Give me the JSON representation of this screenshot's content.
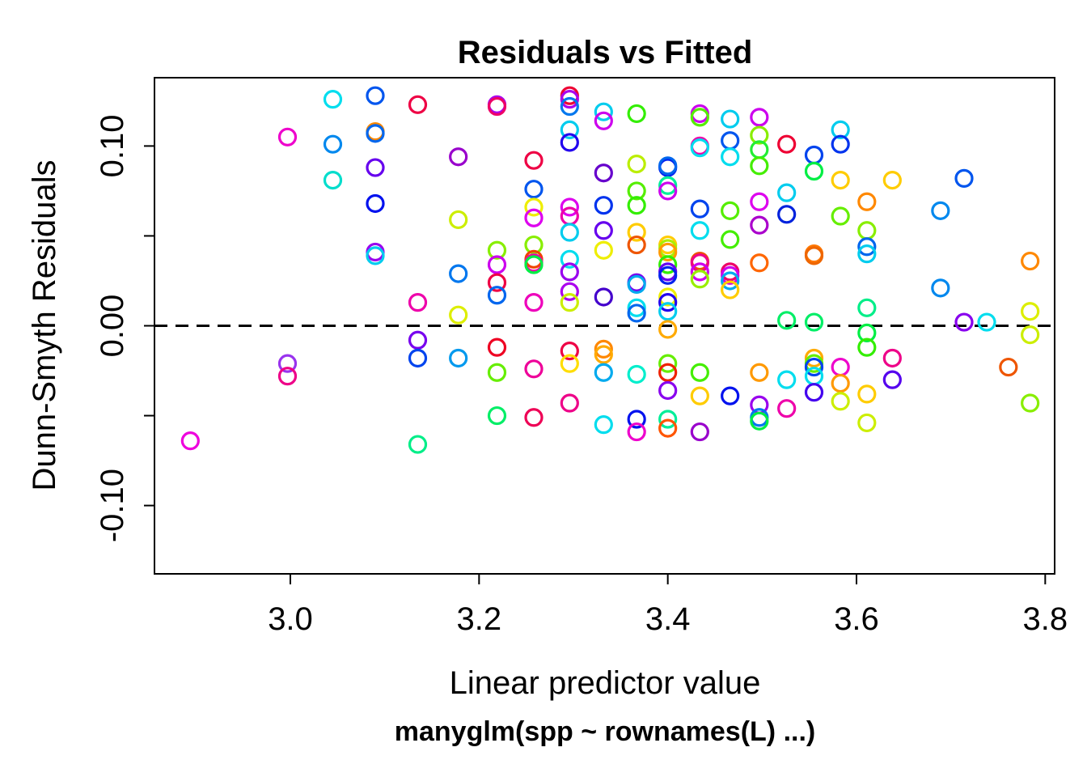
{
  "chart_data": {
    "type": "scatter",
    "title": "Residuals vs Fitted",
    "xlabel": "Linear predictor value",
    "subtitle": "manyglm(spp ~ rownames(L) ...)",
    "ylabel": "Dunn-Smyth Residuals",
    "xlim": [
      2.856,
      3.81
    ],
    "ylim": [
      -0.138,
      0.138
    ],
    "x_ticks": [
      3.0,
      3.2,
      3.4,
      3.6,
      3.8
    ],
    "x_tick_labels": [
      "3.0",
      "3.2",
      "3.4",
      "3.6",
      "3.8"
    ],
    "y_ticks": [
      -0.1,
      -0.05,
      0.0,
      0.05,
      0.1
    ],
    "y_tick_labels": [
      "-0.10",
      "",
      "0.00",
      "",
      "0.10"
    ],
    "reference_line": {
      "y": 0.0,
      "style": "dashed"
    },
    "grid": false,
    "marker": "open-circle",
    "points": [
      {
        "x": 2.894,
        "y": -0.064,
        "color": "#ee00dd"
      },
      {
        "x": 2.997,
        "y": 0.105,
        "color": "#ee00cc"
      },
      {
        "x": 2.997,
        "y": -0.021,
        "color": "#9933ee"
      },
      {
        "x": 2.997,
        "y": -0.028,
        "color": "#ee0088"
      },
      {
        "x": 3.045,
        "y": 0.126,
        "color": "#00ddee"
      },
      {
        "x": 3.045,
        "y": 0.101,
        "color": "#0088ee"
      },
      {
        "x": 3.045,
        "y": 0.081,
        "color": "#00ddcc"
      },
      {
        "x": 3.09,
        "y": 0.128,
        "color": "#0055ee"
      },
      {
        "x": 3.09,
        "y": 0.108,
        "color": "#ff8800"
      },
      {
        "x": 3.09,
        "y": 0.107,
        "color": "#0066ee"
      },
      {
        "x": 3.09,
        "y": 0.088,
        "color": "#6600ee"
      },
      {
        "x": 3.09,
        "y": 0.068,
        "color": "#0011ee"
      },
      {
        "x": 3.09,
        "y": 0.041,
        "color": "#9900ee"
      },
      {
        "x": 3.09,
        "y": 0.039,
        "color": "#00ccee"
      },
      {
        "x": 3.135,
        "y": 0.123,
        "color": "#ee0044"
      },
      {
        "x": 3.135,
        "y": 0.013,
        "color": "#ee00aa"
      },
      {
        "x": 3.135,
        "y": -0.008,
        "color": "#7700ee"
      },
      {
        "x": 3.135,
        "y": -0.018,
        "color": "#0044ee"
      },
      {
        "x": 3.135,
        "y": -0.066,
        "color": "#00ee88"
      },
      {
        "x": 3.178,
        "y": 0.094,
        "color": "#9900cc"
      },
      {
        "x": 3.178,
        "y": 0.059,
        "color": "#ccee00"
      },
      {
        "x": 3.178,
        "y": 0.029,
        "color": "#0077ee"
      },
      {
        "x": 3.178,
        "y": 0.006,
        "color": "#ddee00"
      },
      {
        "x": 3.178,
        "y": -0.018,
        "color": "#0099ee"
      },
      {
        "x": 3.219,
        "y": 0.123,
        "color": "#aa00ee"
      },
      {
        "x": 3.219,
        "y": 0.122,
        "color": "#ee0066"
      },
      {
        "x": 3.219,
        "y": 0.042,
        "color": "#88ee00"
      },
      {
        "x": 3.219,
        "y": 0.034,
        "color": "#cc00ee"
      },
      {
        "x": 3.219,
        "y": 0.024,
        "color": "#ee0044"
      },
      {
        "x": 3.219,
        "y": 0.017,
        "color": "#0066ee"
      },
      {
        "x": 3.219,
        "y": -0.012,
        "color": "#ee0022"
      },
      {
        "x": 3.219,
        "y": -0.026,
        "color": "#66ee00"
      },
      {
        "x": 3.219,
        "y": -0.05,
        "color": "#00ee66"
      },
      {
        "x": 3.258,
        "y": 0.092,
        "color": "#ee0044"
      },
      {
        "x": 3.258,
        "y": 0.076,
        "color": "#0055ee"
      },
      {
        "x": 3.258,
        "y": 0.066,
        "color": "#eeee00"
      },
      {
        "x": 3.258,
        "y": 0.06,
        "color": "#dd00ee"
      },
      {
        "x": 3.258,
        "y": 0.045,
        "color": "#88ee00"
      },
      {
        "x": 3.258,
        "y": 0.037,
        "color": "#ee4400"
      },
      {
        "x": 3.258,
        "y": 0.035,
        "color": "#ee00aa"
      },
      {
        "x": 3.258,
        "y": 0.034,
        "color": "#00ee44"
      },
      {
        "x": 3.258,
        "y": 0.013,
        "color": "#ee00bb"
      },
      {
        "x": 3.258,
        "y": -0.024,
        "color": "#ee0099"
      },
      {
        "x": 3.258,
        "y": -0.051,
        "color": "#ee0055"
      },
      {
        "x": 3.296,
        "y": 0.128,
        "color": "#ee0033"
      },
      {
        "x": 3.296,
        "y": 0.126,
        "color": "#aa00ee"
      },
      {
        "x": 3.296,
        "y": 0.122,
        "color": "#0077ee"
      },
      {
        "x": 3.296,
        "y": 0.109,
        "color": "#00ccee"
      },
      {
        "x": 3.296,
        "y": 0.102,
        "color": "#2200ee"
      },
      {
        "x": 3.296,
        "y": 0.066,
        "color": "#dd00ee"
      },
      {
        "x": 3.296,
        "y": 0.061,
        "color": "#ee00aa"
      },
      {
        "x": 3.296,
        "y": 0.052,
        "color": "#00ccee"
      },
      {
        "x": 3.296,
        "y": 0.037,
        "color": "#00ddee"
      },
      {
        "x": 3.296,
        "y": 0.03,
        "color": "#9900ee"
      },
      {
        "x": 3.296,
        "y": 0.019,
        "color": "#aa00ee"
      },
      {
        "x": 3.296,
        "y": 0.013,
        "color": "#ccee00"
      },
      {
        "x": 3.296,
        "y": -0.014,
        "color": "#ee0044"
      },
      {
        "x": 3.296,
        "y": -0.021,
        "color": "#ffdd00"
      },
      {
        "x": 3.296,
        "y": -0.043,
        "color": "#ee0088"
      },
      {
        "x": 3.332,
        "y": 0.119,
        "color": "#00ccee"
      },
      {
        "x": 3.332,
        "y": 0.114,
        "color": "#cc00ee"
      },
      {
        "x": 3.332,
        "y": 0.085,
        "color": "#6600cc"
      },
      {
        "x": 3.332,
        "y": 0.067,
        "color": "#0033ee"
      },
      {
        "x": 3.332,
        "y": 0.053,
        "color": "#6600ee"
      },
      {
        "x": 3.332,
        "y": 0.042,
        "color": "#eeee00"
      },
      {
        "x": 3.332,
        "y": 0.016,
        "color": "#4400cc"
      },
      {
        "x": 3.332,
        "y": -0.013,
        "color": "#ff8800"
      },
      {
        "x": 3.332,
        "y": -0.016,
        "color": "#ffaa00"
      },
      {
        "x": 3.332,
        "y": -0.026,
        "color": "#00aaee"
      },
      {
        "x": 3.332,
        "y": -0.055,
        "color": "#00ddee"
      },
      {
        "x": 3.367,
        "y": 0.118,
        "color": "#33ee00"
      },
      {
        "x": 3.367,
        "y": 0.09,
        "color": "#bbee00"
      },
      {
        "x": 3.367,
        "y": 0.075,
        "color": "#55ee00"
      },
      {
        "x": 3.367,
        "y": 0.067,
        "color": "#33ee00"
      },
      {
        "x": 3.367,
        "y": 0.052,
        "color": "#ffcc00"
      },
      {
        "x": 3.367,
        "y": 0.045,
        "color": "#ee5500"
      },
      {
        "x": 3.367,
        "y": 0.024,
        "color": "#7700ee"
      },
      {
        "x": 3.367,
        "y": 0.023,
        "color": "#00aaee"
      },
      {
        "x": 3.367,
        "y": 0.01,
        "color": "#00ddee"
      },
      {
        "x": 3.367,
        "y": 0.007,
        "color": "#0066ee"
      },
      {
        "x": 3.367,
        "y": -0.027,
        "color": "#00eecc"
      },
      {
        "x": 3.367,
        "y": -0.052,
        "color": "#0011ee"
      },
      {
        "x": 3.367,
        "y": -0.059,
        "color": "#ee00cc"
      },
      {
        "x": 3.4,
        "y": 0.088,
        "color": "#0022ee"
      },
      {
        "x": 3.4,
        "y": 0.089,
        "color": "#0066ee"
      },
      {
        "x": 3.4,
        "y": 0.078,
        "color": "#00ee99"
      },
      {
        "x": 3.4,
        "y": 0.075,
        "color": "#cc00ee"
      },
      {
        "x": 3.4,
        "y": 0.045,
        "color": "#ffcc00"
      },
      {
        "x": 3.4,
        "y": 0.043,
        "color": "#aaee00"
      },
      {
        "x": 3.4,
        "y": 0.041,
        "color": "#ff9900"
      },
      {
        "x": 3.4,
        "y": 0.034,
        "color": "#33ee00"
      },
      {
        "x": 3.4,
        "y": 0.03,
        "color": "#6600ee"
      },
      {
        "x": 3.4,
        "y": 0.028,
        "color": "#0022ee"
      },
      {
        "x": 3.4,
        "y": 0.016,
        "color": "#eeee00"
      },
      {
        "x": 3.4,
        "y": 0.013,
        "color": "#2200ee"
      },
      {
        "x": 3.4,
        "y": 0.008,
        "color": "#00ccee"
      },
      {
        "x": 3.4,
        "y": -0.002,
        "color": "#ffaa00"
      },
      {
        "x": 3.4,
        "y": -0.021,
        "color": "#66ee00"
      },
      {
        "x": 3.4,
        "y": -0.026,
        "color": "#ee2200"
      },
      {
        "x": 3.4,
        "y": -0.036,
        "color": "#8800ee"
      },
      {
        "x": 3.4,
        "y": -0.052,
        "color": "#00ee99"
      },
      {
        "x": 3.4,
        "y": -0.057,
        "color": "#ff5500"
      },
      {
        "x": 3.434,
        "y": 0.118,
        "color": "#cc00ee"
      },
      {
        "x": 3.434,
        "y": 0.116,
        "color": "#55ee00"
      },
      {
        "x": 3.434,
        "y": 0.1,
        "color": "#ee00aa"
      },
      {
        "x": 3.434,
        "y": 0.099,
        "color": "#00ddee"
      },
      {
        "x": 3.434,
        "y": 0.065,
        "color": "#0044ee"
      },
      {
        "x": 3.434,
        "y": 0.053,
        "color": "#00ddee"
      },
      {
        "x": 3.434,
        "y": 0.036,
        "color": "#ee5500"
      },
      {
        "x": 3.434,
        "y": 0.035,
        "color": "#ee0088"
      },
      {
        "x": 3.434,
        "y": 0.03,
        "color": "#cc00ee"
      },
      {
        "x": 3.434,
        "y": 0.026,
        "color": "#99ee00"
      },
      {
        "x": 3.434,
        "y": -0.026,
        "color": "#44ee00"
      },
      {
        "x": 3.434,
        "y": -0.039,
        "color": "#ffcc00"
      },
      {
        "x": 3.434,
        "y": -0.059,
        "color": "#9900cc"
      },
      {
        "x": 3.466,
        "y": 0.115,
        "color": "#00ccee"
      },
      {
        "x": 3.466,
        "y": 0.103,
        "color": "#0055ee"
      },
      {
        "x": 3.466,
        "y": 0.094,
        "color": "#00ddee"
      },
      {
        "x": 3.466,
        "y": 0.064,
        "color": "#55ee00"
      },
      {
        "x": 3.466,
        "y": 0.048,
        "color": "#44ee00"
      },
      {
        "x": 3.466,
        "y": 0.03,
        "color": "#ee0066"
      },
      {
        "x": 3.466,
        "y": 0.028,
        "color": "#cc00ee"
      },
      {
        "x": 3.466,
        "y": 0.025,
        "color": "#00aaee"
      },
      {
        "x": 3.466,
        "y": 0.02,
        "color": "#ffcc00"
      },
      {
        "x": 3.466,
        "y": -0.039,
        "color": "#0011ee"
      },
      {
        "x": 3.497,
        "y": 0.116,
        "color": "#cc00ee"
      },
      {
        "x": 3.497,
        "y": 0.106,
        "color": "#88ee00"
      },
      {
        "x": 3.497,
        "y": 0.098,
        "color": "#22ee33"
      },
      {
        "x": 3.497,
        "y": 0.089,
        "color": "#44ee00"
      },
      {
        "x": 3.497,
        "y": 0.069,
        "color": "#dd00ee"
      },
      {
        "x": 3.497,
        "y": 0.056,
        "color": "#aa00cc"
      },
      {
        "x": 3.497,
        "y": 0.035,
        "color": "#ff6600"
      },
      {
        "x": 3.497,
        "y": -0.026,
        "color": "#ff9900"
      },
      {
        "x": 3.497,
        "y": -0.044,
        "color": "#9900ee"
      },
      {
        "x": 3.497,
        "y": -0.051,
        "color": "#0077ee"
      },
      {
        "x": 3.497,
        "y": -0.053,
        "color": "#00ee44"
      },
      {
        "x": 3.526,
        "y": 0.101,
        "color": "#ee0033"
      },
      {
        "x": 3.526,
        "y": 0.074,
        "color": "#00ccee"
      },
      {
        "x": 3.526,
        "y": 0.062,
        "color": "#0022dd"
      },
      {
        "x": 3.526,
        "y": 0.003,
        "color": "#00ee66"
      },
      {
        "x": 3.526,
        "y": -0.03,
        "color": "#00ddee"
      },
      {
        "x": 3.526,
        "y": -0.046,
        "color": "#ee00aa"
      },
      {
        "x": 3.555,
        "y": 0.095,
        "color": "#0044ee"
      },
      {
        "x": 3.555,
        "y": 0.086,
        "color": "#00ee44"
      },
      {
        "x": 3.555,
        "y": 0.04,
        "color": "#ff7700"
      },
      {
        "x": 3.555,
        "y": 0.039,
        "color": "#ee6600"
      },
      {
        "x": 3.555,
        "y": 0.002,
        "color": "#00ee66"
      },
      {
        "x": 3.555,
        "y": -0.018,
        "color": "#ffaa00"
      },
      {
        "x": 3.555,
        "y": -0.021,
        "color": "#66ee00"
      },
      {
        "x": 3.555,
        "y": -0.023,
        "color": "#0044ee"
      },
      {
        "x": 3.555,
        "y": -0.028,
        "color": "#00ddee"
      },
      {
        "x": 3.555,
        "y": -0.037,
        "color": "#4400ee"
      },
      {
        "x": 3.583,
        "y": 0.109,
        "color": "#00ccee"
      },
      {
        "x": 3.583,
        "y": 0.101,
        "color": "#0033ee"
      },
      {
        "x": 3.583,
        "y": 0.081,
        "color": "#ffcc00"
      },
      {
        "x": 3.583,
        "y": 0.061,
        "color": "#66ee00"
      },
      {
        "x": 3.583,
        "y": -0.023,
        "color": "#ee00cc"
      },
      {
        "x": 3.583,
        "y": -0.032,
        "color": "#ff9900"
      },
      {
        "x": 3.583,
        "y": -0.042,
        "color": "#ccee00"
      },
      {
        "x": 3.611,
        "y": 0.069,
        "color": "#ff8800"
      },
      {
        "x": 3.611,
        "y": 0.053,
        "color": "#88ee00"
      },
      {
        "x": 3.611,
        "y": 0.044,
        "color": "#0066ee"
      },
      {
        "x": 3.611,
        "y": 0.04,
        "color": "#00ccee"
      },
      {
        "x": 3.611,
        "y": 0.01,
        "color": "#00ee88"
      },
      {
        "x": 3.611,
        "y": -0.004,
        "color": "#00ee44"
      },
      {
        "x": 3.611,
        "y": -0.012,
        "color": "#33ee00"
      },
      {
        "x": 3.611,
        "y": -0.038,
        "color": "#ffcc00"
      },
      {
        "x": 3.611,
        "y": -0.054,
        "color": "#ccee00"
      },
      {
        "x": 3.638,
        "y": 0.081,
        "color": "#ffcc00"
      },
      {
        "x": 3.638,
        "y": -0.018,
        "color": "#ee0088"
      },
      {
        "x": 3.638,
        "y": -0.03,
        "color": "#5500ee"
      },
      {
        "x": 3.689,
        "y": 0.064,
        "color": "#0088ee"
      },
      {
        "x": 3.689,
        "y": 0.021,
        "color": "#0088ee"
      },
      {
        "x": 3.714,
        "y": 0.082,
        "color": "#0055ee"
      },
      {
        "x": 3.714,
        "y": 0.002,
        "color": "#8800ee"
      },
      {
        "x": 3.738,
        "y": 0.002,
        "color": "#00ddee"
      },
      {
        "x": 3.761,
        "y": -0.023,
        "color": "#ee5500"
      },
      {
        "x": 3.784,
        "y": 0.036,
        "color": "#ff8800"
      },
      {
        "x": 3.784,
        "y": 0.008,
        "color": "#ddee00"
      },
      {
        "x": 3.784,
        "y": -0.005,
        "color": "#ccee00"
      },
      {
        "x": 3.784,
        "y": -0.043,
        "color": "#88ee00"
      }
    ]
  }
}
